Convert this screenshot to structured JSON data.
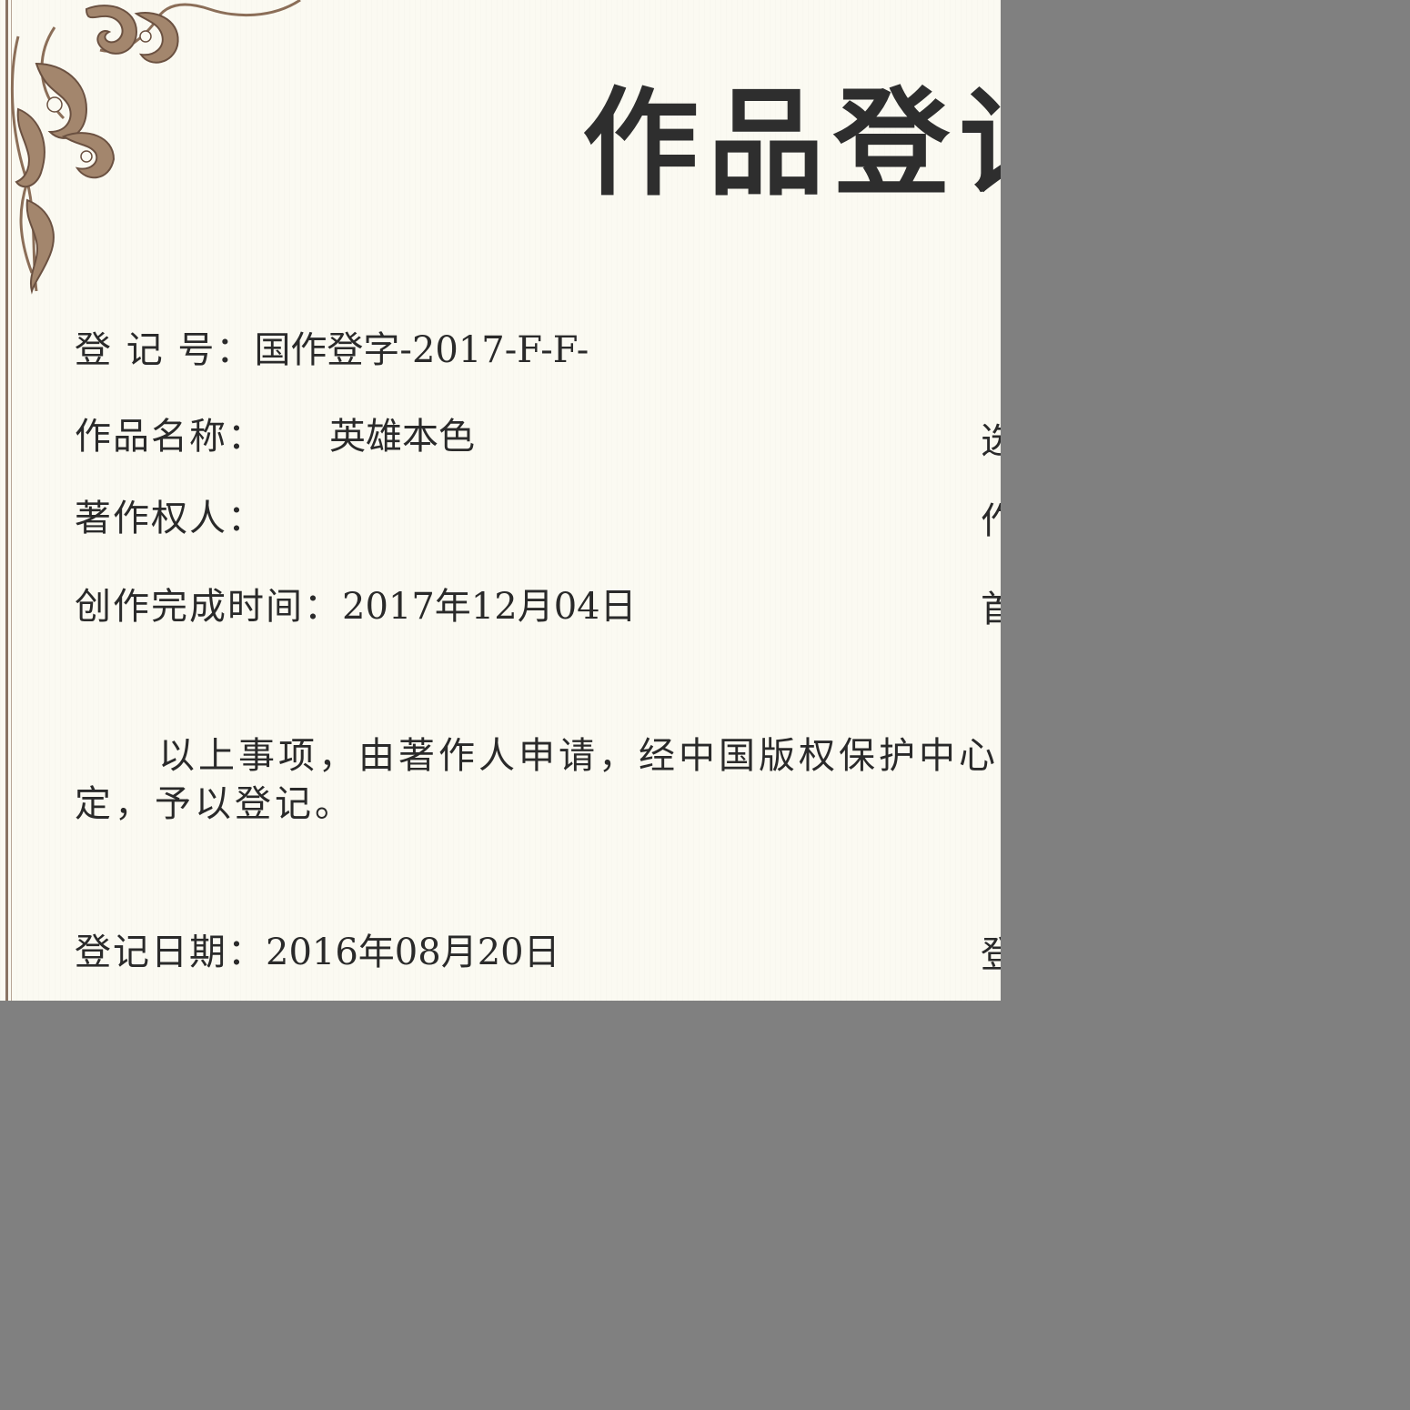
{
  "certificate": {
    "title": "作品登记",
    "registration_no": {
      "label": "登 记 号：",
      "value": "国作登字-2017-F-F-"
    },
    "work_name": {
      "label": "作品名称：",
      "value": "英雄本色"
    },
    "copyright_holder": {
      "label": "著作权人：",
      "value": ""
    },
    "completion_date": {
      "label": "创作完成时间：",
      "value": "2017年12月04日"
    },
    "statement": {
      "line1": "以上事项，由著作人申请，经中国版权保护中心",
      "line2": "定，予以登记。"
    },
    "registration_date": {
      "label": "登记日期：",
      "value": "2016年08月20日"
    },
    "right_column_glyphs": [
      "选",
      "作",
      "首",
      "登"
    ]
  },
  "colors": {
    "paper": "#fbfaf2",
    "ornament": "#a3866d",
    "text": "#2a2a2a",
    "outside": "#808080"
  }
}
